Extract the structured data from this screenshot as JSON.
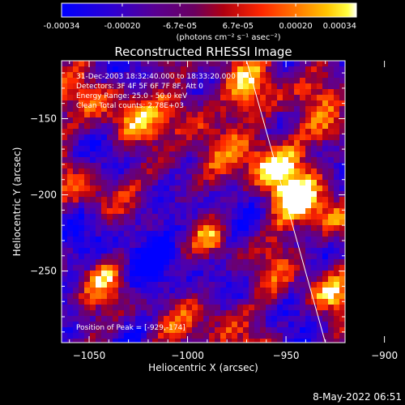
{
  "colorbar": {
    "tick_labels": [
      "-0.00034",
      "-0.00020",
      "-6.7e-05",
      "6.7e-05",
      "0.00020",
      "0.00034"
    ],
    "tick_values": [
      -0.00034,
      -0.0002,
      -6.7e-05,
      6.7e-05,
      0.0002,
      0.00034
    ],
    "range": [
      -0.00034,
      0.00034
    ],
    "unit_label": "(photons cm⁻² s⁻¹ asec⁻²)"
  },
  "annotations": {
    "time": "31-Dec-2003 18:32:40.000 to 18:33:20.000",
    "detectors": "Detectors: 3F 4F 5F 6F 7F 8F, Att 0",
    "energy": "Energy Range: 25.0 - 50.0 keV",
    "clean": "Clean    Total counts: 2.78E+03",
    "peak": "Position of Peak = [-929,-174]"
  },
  "timestamp": "8-May-2022 06:51",
  "chart_data": {
    "type": "heatmap",
    "title": "Reconstructed RHESSI Image",
    "xlabel": "Heliocentric X (arcsec)",
    "ylabel": "Heliocentric Y (arcsec)",
    "xlim": [
      -1064,
      -920
    ],
    "ylim": [
      -297,
      -112
    ],
    "xticks": [
      -1050,
      -1000,
      -950,
      -900
    ],
    "yticks": [
      -250,
      -200,
      -150
    ],
    "xtick_labels": [
      "−1050",
      "−1000",
      "−950",
      "−900"
    ],
    "ytick_labels": [
      "−250",
      "−200",
      "−150"
    ],
    "limb_line": [
      [
        -970,
        -112
      ],
      [
        -930,
        -297
      ]
    ],
    "peak_position": [
      -929,
      -174
    ],
    "colormap": [
      "#0000ff",
      "#3b00c8",
      "#6a00a0",
      "#800080",
      "#c00000",
      "#ff3000",
      "#ff7000",
      "#ffb000",
      "#ffe000",
      "#ffffff"
    ]
  }
}
